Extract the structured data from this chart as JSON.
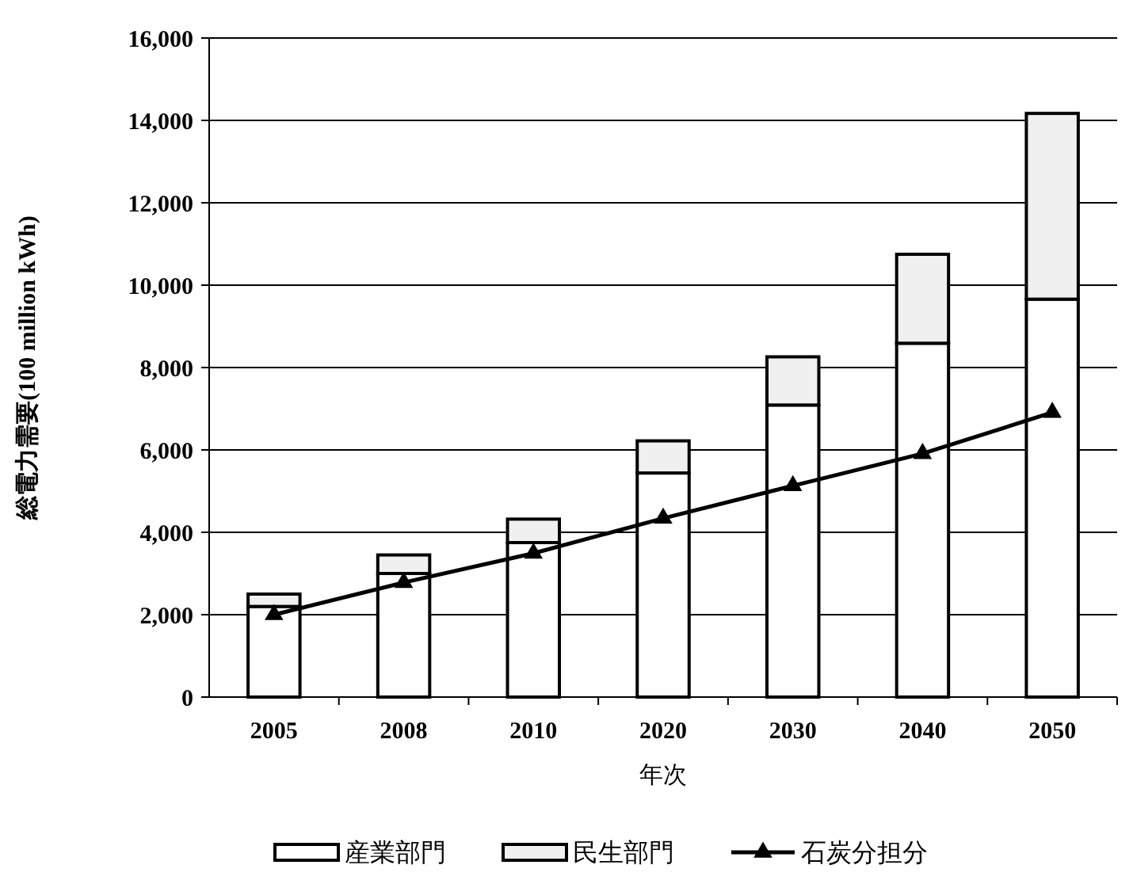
{
  "chart_data": {
    "type": "bar",
    "stacked": true,
    "xlabel": "年次",
    "ylabel": "総電力需要(100 million kWh)",
    "categories": [
      "2005",
      "2008",
      "2010",
      "2020",
      "2030",
      "2040",
      "2050"
    ],
    "series": [
      {
        "name": "産業部門",
        "color": "#ffffff",
        "values": [
          2200,
          3000,
          3750,
          5440,
          7090,
          8590,
          9660
        ]
      },
      {
        "name": "民生部門",
        "color": "#f0f0f0",
        "values": [
          300,
          450,
          570,
          780,
          1170,
          2160,
          4510
        ]
      },
      {
        "name": "石炭分担分",
        "type": "line",
        "color": "#000000",
        "marker": "triangle",
        "values": [
          2000,
          2780,
          3490,
          4340,
          5130,
          5910,
          6910
        ]
      }
    ],
    "ylim": [
      0,
      16000
    ],
    "yticks": [
      {
        "value": 0,
        "label": "0"
      },
      {
        "value": 2000,
        "label": "2,000"
      },
      {
        "value": 4000,
        "label": "4,000"
      },
      {
        "value": 6000,
        "label": "6,000"
      },
      {
        "value": 8000,
        "label": "8,000"
      },
      {
        "value": 10000,
        "label": "10,000"
      },
      {
        "value": 12000,
        "label": "12,000"
      },
      {
        "value": 14000,
        "label": "14,000"
      },
      {
        "value": 16000,
        "label": "16,000"
      }
    ],
    "grid": "y",
    "legend": "bottom"
  }
}
